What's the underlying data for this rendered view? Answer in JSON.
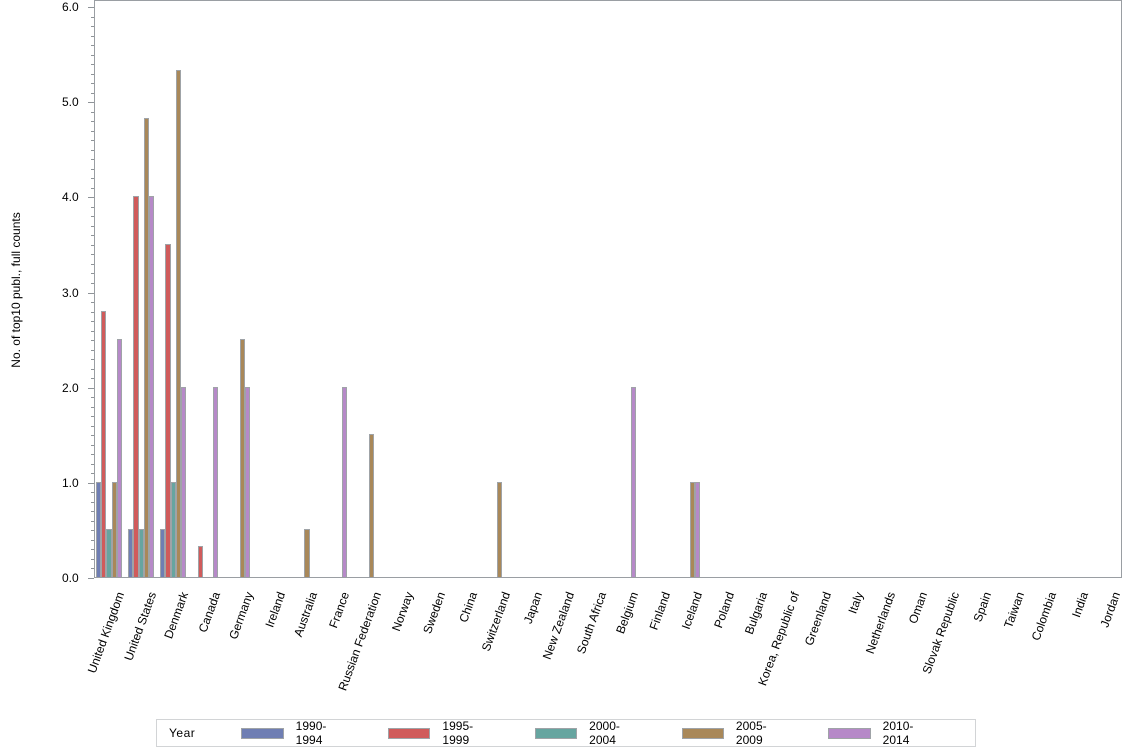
{
  "chart_data": {
    "type": "bar",
    "title": "",
    "xlabel": "",
    "ylabel": "No. of top10 publ., full counts",
    "ylim": [
      0,
      6.0
    ],
    "yticks": [
      "0.0",
      "1.0",
      "2.0",
      "3.0",
      "4.0",
      "5.0",
      "6.0"
    ],
    "grid": false,
    "legend_position": "bottom",
    "legend_title": "Year",
    "categories": [
      "United Kingdom",
      "United States",
      "Denmark",
      "Canada",
      "Germany",
      "Ireland",
      "Australia",
      "France",
      "Russian Federation",
      "Norway",
      "Sweden",
      "China",
      "Switzerland",
      "Japan",
      "New Zealand",
      "South Africa",
      "Belgium",
      "Finland",
      "Iceland",
      "Poland",
      "Bulgaria",
      "Korea, Republic of",
      "Greenland",
      "Italy",
      "Netherlands",
      "Oman",
      "Slovak Republic",
      "Spain",
      "Taiwan",
      "Colombia",
      "India",
      "Jordan"
    ],
    "series": [
      {
        "name": "1990-1994",
        "color": "#6f7eb3",
        "values": [
          1.0,
          0.5,
          0.5,
          0,
          0,
          0,
          0,
          0,
          0,
          0,
          0,
          0,
          0,
          0,
          0,
          0,
          0,
          0,
          0,
          0,
          0,
          0,
          0,
          0,
          0,
          0,
          0,
          0,
          0,
          0,
          0,
          0
        ]
      },
      {
        "name": "1995-1999",
        "color": "#d05b5b",
        "values": [
          2.8,
          4.0,
          3.5,
          0.33,
          0,
          0,
          0,
          0,
          0,
          0,
          0,
          0,
          0,
          0,
          0,
          0,
          0,
          0,
          0,
          0,
          0,
          0,
          0,
          0,
          0,
          0,
          0,
          0,
          0,
          0,
          0,
          0
        ]
      },
      {
        "name": "2000-2004",
        "color": "#66a5a0",
        "values": [
          0.5,
          0.5,
          1.0,
          0,
          0,
          0,
          0,
          0,
          0,
          0,
          0,
          0,
          0,
          0,
          0,
          0,
          0,
          0,
          0,
          0,
          0,
          0,
          0,
          0,
          0,
          0,
          0,
          0,
          0,
          0,
          0,
          0
        ]
      },
      {
        "name": "2005-2009",
        "color": "#a98859",
        "values": [
          1.0,
          4.82,
          5.33,
          0,
          2.5,
          0,
          0.5,
          0,
          1.5,
          0,
          0,
          0,
          1.0,
          0,
          0,
          0,
          0,
          0,
          1.0,
          0,
          0,
          0,
          0,
          0,
          0,
          0,
          0,
          0,
          0,
          0,
          0,
          0
        ]
      },
      {
        "name": "2010-2014",
        "color": "#b689c8",
        "values": [
          2.5,
          4.0,
          2.0,
          2.0,
          2.0,
          0,
          0,
          2.0,
          0,
          0,
          0,
          0,
          0,
          0,
          0,
          0,
          2.0,
          0,
          1.0,
          0,
          0,
          0,
          0,
          0,
          0,
          0,
          0,
          0,
          0,
          0,
          0,
          0
        ]
      }
    ]
  }
}
